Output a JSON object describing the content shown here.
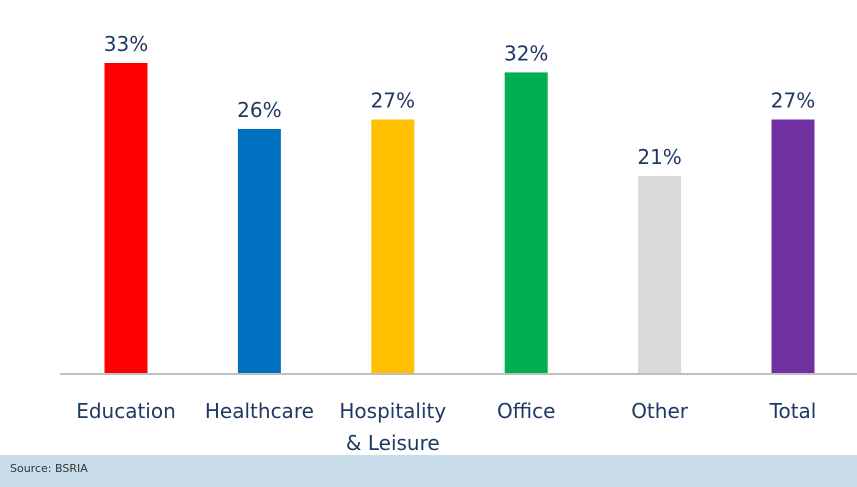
{
  "chart_data": {
    "type": "bar",
    "categories": [
      "Education",
      "Healthcare",
      "Hospitality & Leisure",
      "Office",
      "Other",
      "Total"
    ],
    "category_lines": [
      [
        "Education"
      ],
      [
        "Healthcare"
      ],
      [
        "Hospitality",
        "& Leisure"
      ],
      [
        "Office"
      ],
      [
        "Other"
      ],
      [
        "Total"
      ]
    ],
    "values": [
      33,
      26,
      27,
      32,
      21,
      27
    ],
    "value_labels": [
      "33%",
      "26%",
      "27%",
      "32%",
      "21%",
      "27%"
    ],
    "colors": [
      "#ff0000",
      "#0070c0",
      "#ffc000",
      "#00b050",
      "#d9d9d9",
      "#7030a0"
    ],
    "ylim": [
      0,
      36.5
    ],
    "grid": false,
    "legend": "none"
  },
  "footer": {
    "source": "Source: BSRIA"
  },
  "theme": {
    "label_color": "#1f3864",
    "axis_color": "#bfbfbf",
    "footer_bg": "#c9dcea"
  }
}
